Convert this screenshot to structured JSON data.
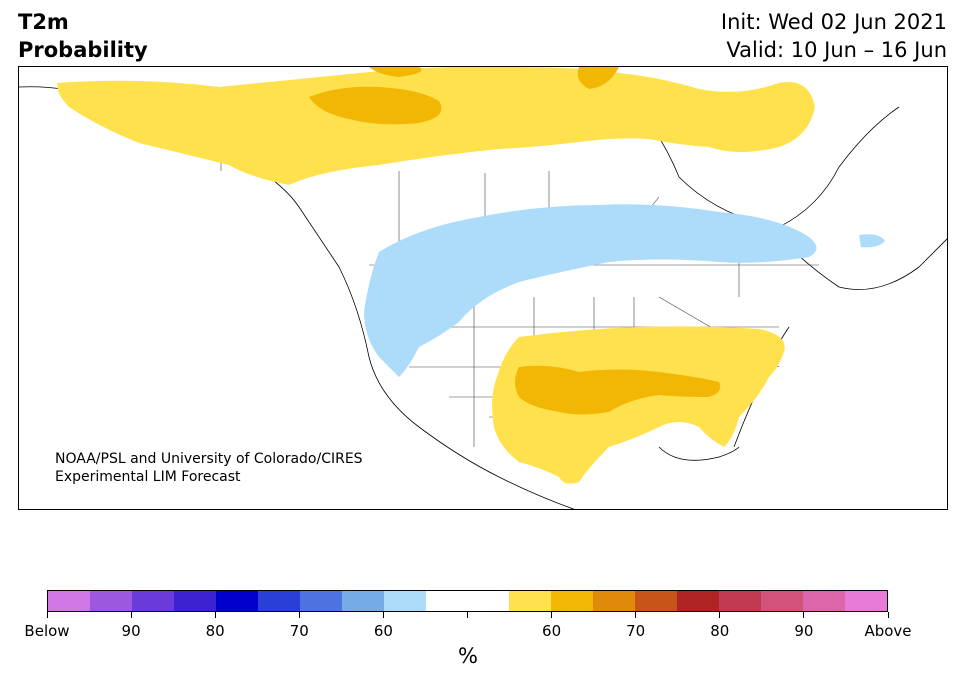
{
  "header": {
    "variable": "T2m",
    "quantity": "Probability",
    "init": "Init: Wed 02 Jun 2021",
    "valid": "Valid: 10 Jun – 16 Jun"
  },
  "credit": {
    "line1": "NOAA/PSL and University of Colorado/CIRES",
    "line2": "Experimental LIM Forecast"
  },
  "colorbar": {
    "colors": [
      "#d177e6",
      "#9d57e0",
      "#6a3bd8",
      "#3d22d2",
      "#0000cc",
      "#2a3fd8",
      "#4d73e0",
      "#76ace6",
      "#addcfa",
      "#ffffff",
      "#ffffff",
      "#ffe14d",
      "#f2b705",
      "#e08a0b",
      "#c8541a",
      "#b02424",
      "#c23a52",
      "#d2527a",
      "#dd66aa",
      "#e87ad8"
    ],
    "labels": [
      "Below",
      "90",
      "80",
      "70",
      "60",
      "",
      "60",
      "70",
      "80",
      "90",
      "Above"
    ],
    "unit": "%"
  },
  "legend_colors": {
    "below_60": "#addcfa",
    "above_60": "#ffe14d",
    "above_70": "#f2b705"
  }
}
